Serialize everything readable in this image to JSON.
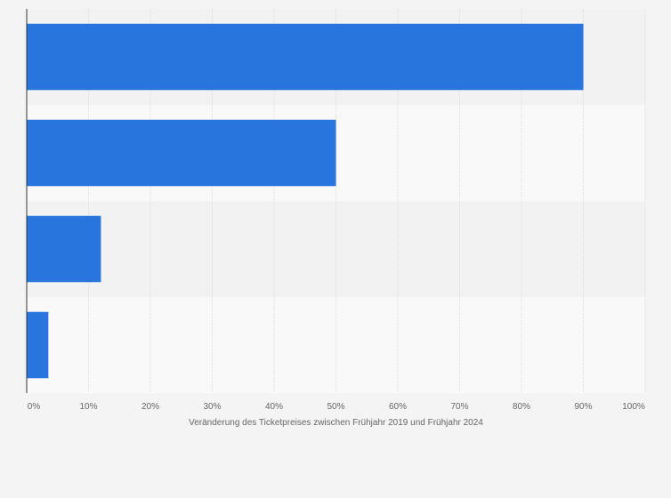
{
  "chart_data": {
    "type": "bar",
    "orientation": "horizontal",
    "title": "",
    "xlabel": "Veränderung des Ticketpreises zwischen Frühjahr 2019 und Frühjahr 2024",
    "ylabel": "",
    "categories": [
      "",
      "",
      "",
      ""
    ],
    "values": [
      90,
      50,
      12,
      3.5
    ],
    "xlim": [
      0,
      100
    ],
    "ticks": [
      "0%",
      "10%",
      "20%",
      "30%",
      "40%",
      "50%",
      "60%",
      "70%",
      "80%",
      "90%",
      "100%"
    ],
    "grid": true,
    "legend": "none",
    "colors": {
      "bar": "#2876dd",
      "band_dark": "#f2f2f2",
      "band_light": "#f9f9f9",
      "grid": "#dcdcdc",
      "axis": "#333333"
    }
  }
}
